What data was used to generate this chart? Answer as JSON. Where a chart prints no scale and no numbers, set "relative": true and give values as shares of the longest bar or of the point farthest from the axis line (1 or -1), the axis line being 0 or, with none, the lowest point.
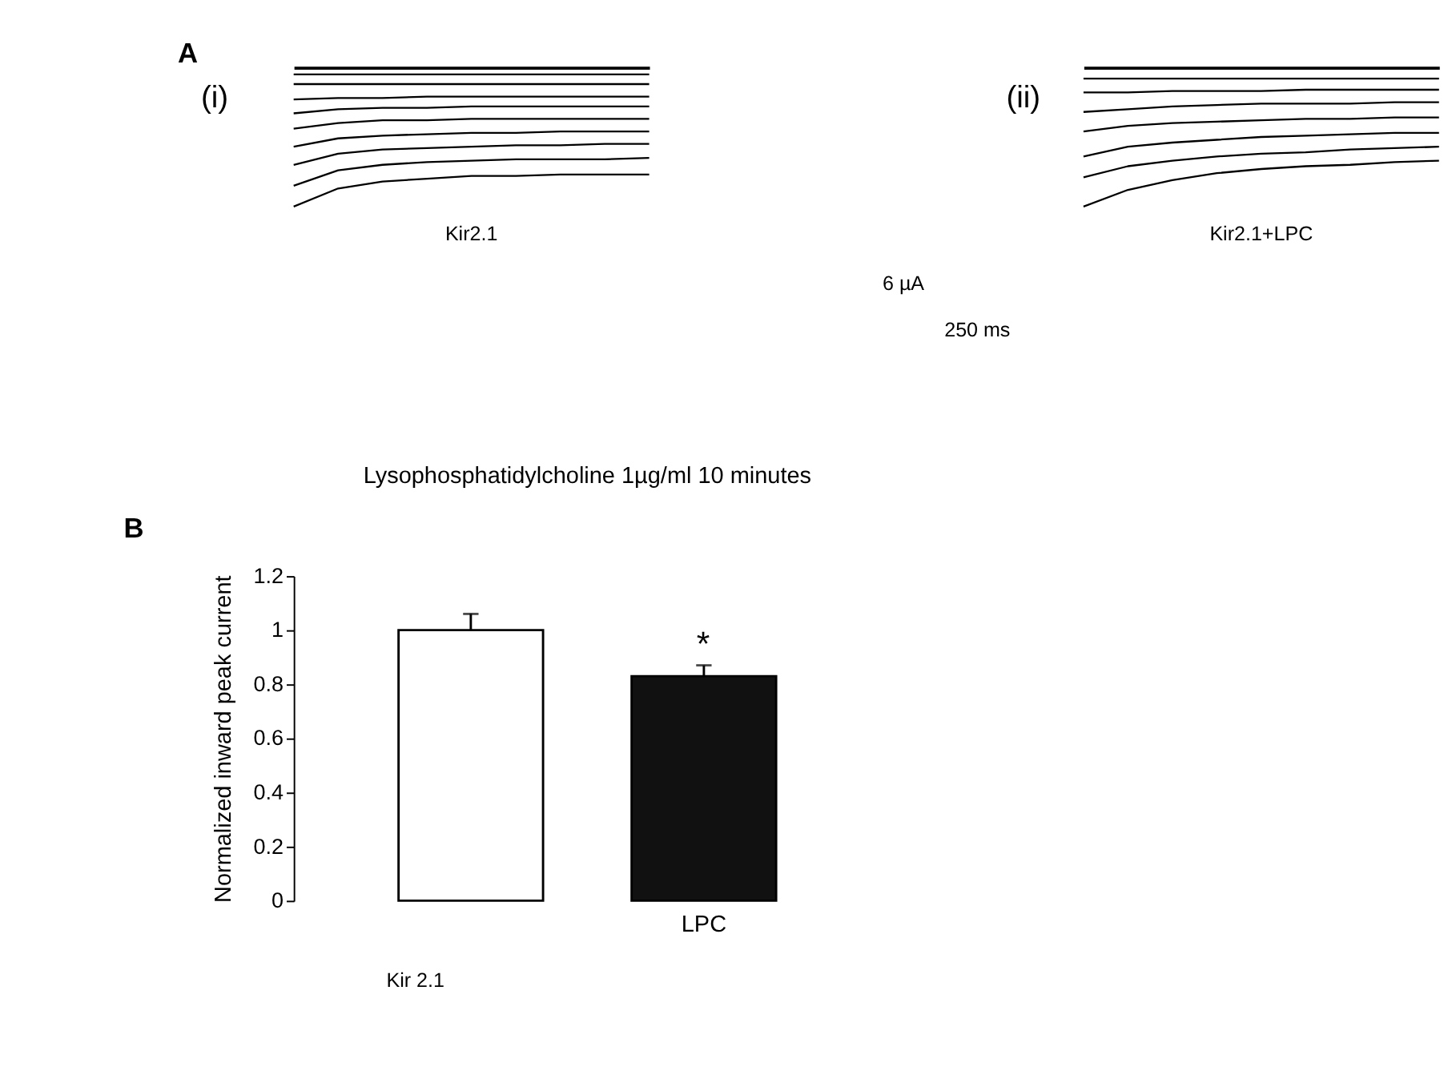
{
  "chart_data": [
    {
      "type": "line",
      "relative": true,
      "categories": [
        null,
        null,
        null,
        null,
        null,
        null,
        null,
        null,
        null
      ],
      "annotations": [
        "A",
        "(i)",
        "Kir2.1"
      ],
      "series": [
        {
          "color": "#000000",
          "values": [
            -0.05,
            -0.05,
            -0.05,
            -0.05,
            -0.05,
            -0.05,
            -0.05,
            -0.05,
            -0.05
          ]
        },
        {
          "color": "#000000",
          "values": [
            -0.12,
            -0.12,
            -0.12,
            -0.12,
            -0.12,
            -0.12,
            -0.12,
            -0.12,
            -0.12
          ]
        },
        {
          "color": "#000000",
          "values": [
            -0.23,
            -0.22,
            -0.22,
            -0.21,
            -0.21,
            -0.21,
            -0.21,
            -0.21,
            -0.21
          ]
        },
        {
          "color": "#000000",
          "values": [
            -0.33,
            -0.3,
            -0.29,
            -0.29,
            -0.28,
            -0.28,
            -0.28,
            -0.28,
            -0.28
          ]
        },
        {
          "color": "#000000",
          "values": [
            -0.44,
            -0.4,
            -0.38,
            -0.38,
            -0.37,
            -0.37,
            -0.37,
            -0.37,
            -0.37
          ]
        },
        {
          "color": "#000000",
          "values": [
            -0.57,
            -0.51,
            -0.49,
            -0.48,
            -0.47,
            -0.47,
            -0.46,
            -0.46,
            -0.46
          ]
        },
        {
          "color": "#000000",
          "values": [
            -0.7,
            -0.62,
            -0.59,
            -0.58,
            -0.57,
            -0.56,
            -0.56,
            -0.55,
            -0.55
          ]
        },
        {
          "color": "#000000",
          "values": [
            -0.85,
            -0.74,
            -0.7,
            -0.68,
            -0.67,
            -0.66,
            -0.66,
            -0.66,
            -0.65
          ]
        },
        {
          "color": "#000000",
          "values": [
            -1,
            -0.87,
            -0.82,
            -0.8,
            -0.78,
            -0.78,
            -0.77,
            -0.77,
            -0.77
          ]
        }
      ]
    },
    {
      "type": "line",
      "relative": true,
      "categories": [
        null,
        null,
        null,
        null,
        null,
        null,
        null,
        null,
        null
      ],
      "annotations": [
        "(ii)",
        "Kir2.1+LPC",
        "6 µA",
        "250 ms"
      ],
      "series": [
        {
          "color": "#000000",
          "values": [
            -0.08,
            -0.08,
            -0.08,
            -0.08,
            -0.08,
            -0.08,
            -0.08,
            -0.08,
            -0.08
          ]
        },
        {
          "color": "#000000",
          "values": [
            -0.18,
            -0.18,
            -0.17,
            -0.17,
            -0.17,
            -0.16,
            -0.16,
            -0.16,
            -0.16
          ]
        },
        {
          "color": "#000000",
          "values": [
            -0.32,
            -0.3,
            -0.28,
            -0.27,
            -0.26,
            -0.26,
            -0.26,
            -0.25,
            -0.25
          ]
        },
        {
          "color": "#000000",
          "values": [
            -0.46,
            -0.42,
            -0.4,
            -0.39,
            -0.38,
            -0.37,
            -0.37,
            -0.36,
            -0.36
          ]
        },
        {
          "color": "#000000",
          "values": [
            -0.64,
            -0.57,
            -0.54,
            -0.52,
            -0.5,
            -0.49,
            -0.48,
            -0.47,
            -0.47
          ]
        },
        {
          "color": "#000000",
          "values": [
            -0.79,
            -0.71,
            -0.67,
            -0.64,
            -0.62,
            -0.61,
            -0.59,
            -0.58,
            -0.57
          ]
        },
        {
          "color": "#000000",
          "values": [
            -1,
            -0.88,
            -0.81,
            -0.76,
            -0.73,
            -0.71,
            -0.7,
            -0.68,
            -0.67
          ]
        }
      ]
    },
    {
      "type": "bar",
      "title": "Lysophosphatidylcholine 1µg/ml 10 minutes",
      "ylabel": "Normalized inward peak current",
      "categories": [
        null,
        "LPC"
      ],
      "values": [
        1,
        0.83
      ],
      "colors": [
        "#ffffff",
        "#111111"
      ],
      "errors": [
        [
          1,
          1.06
        ],
        [
          0.83,
          0.87
        ]
      ],
      "ylim": [
        0,
        1.2
      ],
      "yticks": [
        0,
        0.2,
        0.4,
        0.6,
        0.8,
        1,
        1.2
      ],
      "grid": false,
      "annotations": [
        "B",
        "*",
        "Kir 2.1"
      ]
    }
  ]
}
